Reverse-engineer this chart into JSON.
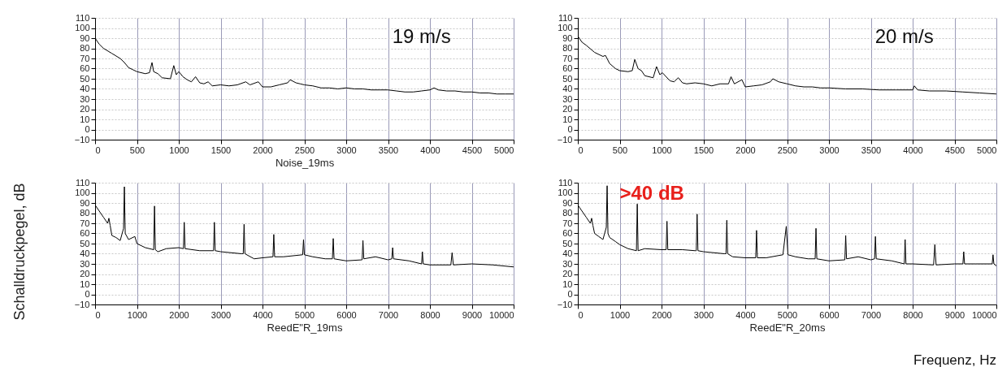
{
  "chart_data": [
    {
      "type": "line",
      "xlabel": "Noise_19ms",
      "annotations": [
        "19 m/s"
      ],
      "color": "#000000",
      "grid": true,
      "xlim": [
        0,
        5000
      ],
      "xticks": [
        0,
        500,
        1000,
        1500,
        2000,
        2500,
        3000,
        3500,
        4000,
        4500,
        5000
      ],
      "ylim": [
        -10,
        110
      ],
      "yticks": [
        -10,
        0,
        10,
        20,
        30,
        40,
        50,
        60,
        70,
        80,
        90,
        100,
        110
      ],
      "x": [
        0,
        50,
        100,
        200,
        300,
        350,
        400,
        450,
        500,
        600,
        650,
        680,
        700,
        750,
        800,
        900,
        940,
        970,
        1000,
        1050,
        1100,
        1150,
        1200,
        1250,
        1300,
        1350,
        1400,
        1500,
        1600,
        1700,
        1800,
        1850,
        1950,
        2000,
        2100,
        2200,
        2300,
        2330,
        2400,
        2450,
        2500,
        2600,
        2700,
        2800,
        2900,
        3000,
        3100,
        3200,
        3300,
        3400,
        3500,
        3600,
        3700,
        3800,
        3900,
        4000,
        4050,
        4100,
        4200,
        4300,
        4400,
        4500,
        4600,
        4700,
        4800,
        4900,
        5000
      ],
      "values": [
        90,
        84,
        80,
        75,
        70,
        66,
        61,
        59,
        57,
        55,
        56,
        66,
        57,
        55,
        51,
        50,
        63,
        54,
        57,
        52,
        49,
        47,
        52,
        46,
        45,
        47,
        43,
        44,
        43,
        44,
        47,
        44,
        47,
        42,
        42,
        44,
        46,
        49,
        46,
        45,
        44,
        43,
        41,
        41,
        40,
        41,
        40,
        40,
        39,
        39,
        39,
        38,
        37,
        37,
        38,
        39,
        41,
        39,
        38,
        38,
        37,
        37,
        36,
        36,
        35,
        35,
        35
      ]
    },
    {
      "type": "line",
      "annotations": [
        "20 m/s"
      ],
      "color": "#000000",
      "grid": true,
      "xlim": [
        0,
        5000
      ],
      "xticks": [
        0,
        500,
        1000,
        1500,
        2000,
        2500,
        3000,
        3500,
        4000,
        4500,
        5000
      ],
      "ylim": [
        -10,
        110
      ],
      "yticks": [
        -10,
        0,
        10,
        20,
        30,
        40,
        50,
        60,
        70,
        80,
        90,
        100,
        110
      ],
      "x": [
        0,
        50,
        100,
        200,
        300,
        330,
        380,
        450,
        500,
        600,
        650,
        680,
        720,
        760,
        800,
        900,
        940,
        980,
        1010,
        1100,
        1150,
        1200,
        1250,
        1300,
        1400,
        1500,
        1600,
        1700,
        1800,
        1830,
        1870,
        1960,
        2000,
        2100,
        2200,
        2300,
        2330,
        2400,
        2500,
        2600,
        2700,
        2800,
        2900,
        3000,
        3200,
        3400,
        3600,
        3800,
        4000,
        4020,
        4060,
        4200,
        4400,
        4600,
        4800,
        5000
      ],
      "values": [
        92,
        86,
        83,
        76,
        72,
        73,
        65,
        60,
        58,
        57,
        58,
        69,
        60,
        58,
        53,
        51,
        62,
        54,
        56,
        48,
        47,
        51,
        46,
        45,
        46,
        45,
        43,
        45,
        45,
        52,
        45,
        49,
        42,
        43,
        44,
        47,
        50,
        47,
        45,
        43,
        42,
        42,
        41,
        41,
        40,
        40,
        39,
        39,
        39,
        43,
        39,
        38,
        38,
        37,
        36,
        35
      ]
    },
    {
      "type": "line",
      "xlabel": "ReedE\"R_19ms",
      "ylabel": "Schalldruckpegel, dB",
      "color": "#000000",
      "grid": true,
      "xlim": [
        0,
        10000
      ],
      "xticks": [
        0,
        1000,
        2000,
        3000,
        4000,
        5000,
        6000,
        7000,
        8000,
        9000,
        10000
      ],
      "ylim": [
        -10,
        110
      ],
      "yticks": [
        -10,
        0,
        10,
        20,
        30,
        40,
        50,
        60,
        70,
        80,
        90,
        100,
        110
      ],
      "x": [
        0,
        100,
        200,
        300,
        330,
        360,
        400,
        500,
        600,
        680,
        700,
        720,
        800,
        950,
        1000,
        1200,
        1400,
        1420,
        1440,
        1500,
        1700,
        2000,
        2110,
        2130,
        2150,
        2500,
        2830,
        2850,
        2870,
        3000,
        3500,
        3540,
        3560,
        3580,
        3800,
        4000,
        4250,
        4270,
        4290,
        4500,
        4960,
        4980,
        5000,
        5200,
        5500,
        5670,
        5690,
        5710,
        6000,
        6380,
        6400,
        6420,
        6700,
        7000,
        7090,
        7110,
        7130,
        7500,
        7800,
        7820,
        7840,
        8000,
        8500,
        8530,
        8560,
        9000,
        9500,
        10000
      ],
      "values": [
        88,
        82,
        76,
        70,
        75,
        68,
        58,
        56,
        53,
        65,
        106,
        60,
        54,
        57,
        50,
        46,
        44,
        87,
        44,
        42,
        45,
        46,
        45,
        71,
        45,
        43,
        43,
        71,
        43,
        42,
        40,
        40,
        69,
        40,
        35,
        36,
        37,
        59,
        37,
        37,
        39,
        54,
        39,
        37,
        35,
        35,
        55,
        35,
        33,
        34,
        53,
        35,
        37,
        34,
        35,
        46,
        35,
        33,
        30,
        42,
        30,
        29,
        29,
        41,
        29,
        30,
        29,
        27
      ]
    },
    {
      "type": "line",
      "xlabel": "ReedE\"R_20ms",
      "annotations": [
        ">40 dB",
        "Frequenz, Hz"
      ],
      "color": "#000000",
      "grid": true,
      "xlim": [
        0,
        10000
      ],
      "xticks": [
        0,
        1000,
        2000,
        3000,
        4000,
        5000,
        6000,
        7000,
        8000,
        9000,
        10000
      ],
      "ylim": [
        -10,
        110
      ],
      "yticks": [
        -10,
        0,
        10,
        20,
        30,
        40,
        50,
        60,
        70,
        80,
        90,
        100,
        110
      ],
      "x": [
        0,
        100,
        200,
        300,
        330,
        360,
        400,
        500,
        600,
        680,
        700,
        720,
        760,
        900,
        1000,
        1200,
        1400,
        1420,
        1440,
        1600,
        2000,
        2110,
        2130,
        2150,
        2500,
        2800,
        2830,
        2850,
        2870,
        3000,
        3500,
        3540,
        3560,
        3580,
        3700,
        4000,
        4250,
        4270,
        4290,
        4500,
        4900,
        4980,
        5020,
        5200,
        5500,
        5670,
        5690,
        5710,
        6000,
        6380,
        6400,
        6420,
        6700,
        7000,
        7090,
        7110,
        7130,
        7500,
        7800,
        7820,
        7840,
        8000,
        8500,
        8530,
        8560,
        9000,
        9200,
        9220,
        9240,
        9500,
        9900,
        9920,
        9940,
        10000
      ],
      "values": [
        88,
        82,
        76,
        70,
        75,
        68,
        60,
        57,
        54,
        66,
        107,
        60,
        56,
        52,
        49,
        45,
        43,
        89,
        43,
        45,
        44,
        44,
        72,
        44,
        44,
        43,
        43,
        79,
        43,
        42,
        40,
        40,
        73,
        40,
        37,
        36,
        36,
        63,
        36,
        36,
        39,
        67,
        39,
        37,
        35,
        35,
        65,
        35,
        33,
        34,
        58,
        35,
        37,
        34,
        35,
        57,
        35,
        33,
        30,
        54,
        30,
        30,
        29,
        49,
        29,
        30,
        30,
        42,
        30,
        30,
        30,
        39,
        30,
        28
      ]
    }
  ]
}
